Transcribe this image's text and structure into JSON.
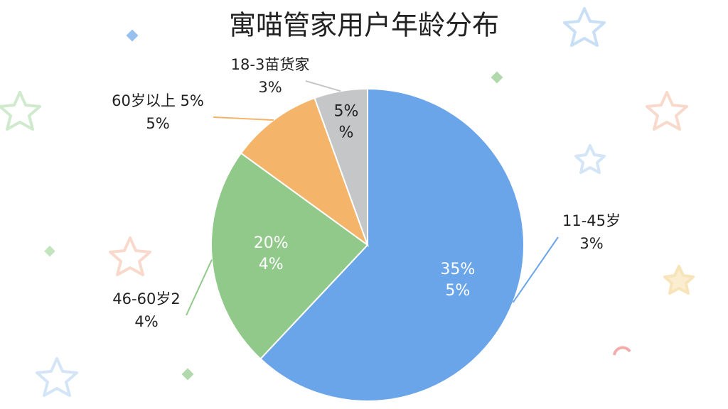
{
  "chart_data": {
    "type": "pie",
    "title": "寓喵管家用户年龄分布",
    "categories": [
      "11-45岁",
      "46-60岁2",
      "60岁以上 5%",
      "18-3苗货家"
    ],
    "values": [
      62,
      23,
      9.5,
      5.5
    ],
    "colors": [
      "#6aa5ea",
      "#90c98a",
      "#f4b46a",
      "#c4c6c8"
    ],
    "outer_labels": [
      "3%",
      "4%",
      "5%",
      "3%"
    ],
    "inner_labels": [
      [
        "35%",
        "5%"
      ],
      [
        "20%",
        "4%"
      ],
      null,
      [
        "5%",
        "%"
      ]
    ]
  }
}
